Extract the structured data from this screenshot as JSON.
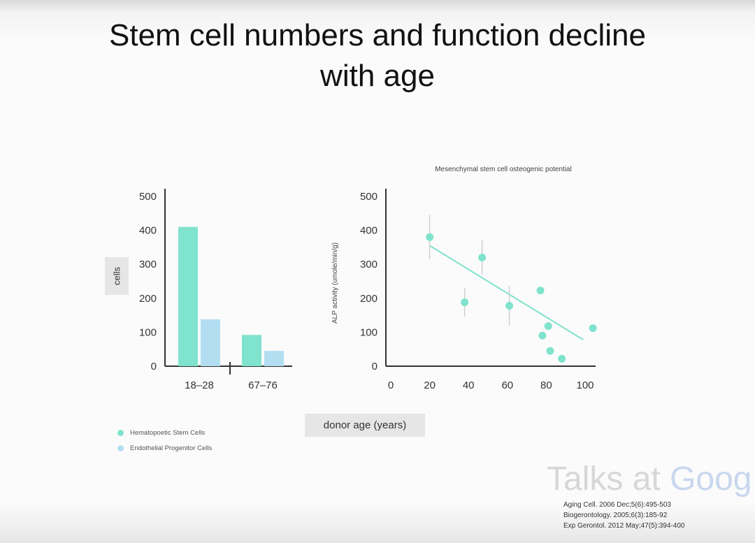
{
  "slide": {
    "title_line1": "Stem cell numbers and function decline",
    "title_line2": "with age"
  },
  "colors": {
    "hsc": "#7fe3cd",
    "epc": "#b3def1",
    "axis": "#333333"
  },
  "chart_data": [
    {
      "type": "bar",
      "categories": [
        "18–28",
        "67–76"
      ],
      "series": [
        {
          "name": "Hematopoetic Stem Cells",
          "values": [
            410,
            92
          ]
        },
        {
          "name": "Endothelial Progenitor Cells",
          "values": [
            138,
            45
          ]
        }
      ],
      "title": "",
      "xlabel": "donor age (years)",
      "ylabel": "cells",
      "ylim": [
        0,
        500
      ],
      "yticks": [
        0,
        100,
        200,
        300,
        400,
        500
      ],
      "legend_position": "bottom-left",
      "grid": false
    },
    {
      "type": "scatter",
      "title": "Mesenchymal stem cell osteogenic potential",
      "xlabel": "donor age (years)",
      "ylabel": "ALP activity (umole/min/g)",
      "xlim": [
        0,
        100
      ],
      "ylim": [
        0,
        500
      ],
      "xticks": [
        0,
        20,
        40,
        60,
        80,
        100
      ],
      "yticks": [
        0,
        100,
        200,
        300,
        400,
        500
      ],
      "points": [
        {
          "x": 20,
          "y": 380,
          "err": 65
        },
        {
          "x": 47,
          "y": 320,
          "err": 50
        },
        {
          "x": 38,
          "y": 188,
          "err": 42
        },
        {
          "x": 61,
          "y": 178,
          "err": 58
        },
        {
          "x": 77,
          "y": 223,
          "err": 0
        },
        {
          "x": 78,
          "y": 90,
          "err": 0
        },
        {
          "x": 81,
          "y": 118,
          "err": 0
        },
        {
          "x": 82,
          "y": 45,
          "err": 0
        },
        {
          "x": 88,
          "y": 22,
          "err": 0
        },
        {
          "x": 104,
          "y": 112,
          "err": 8
        }
      ],
      "trendline": {
        "x1": 20,
        "y1": 355,
        "x2": 99,
        "y2": 78
      },
      "grid": false
    }
  ],
  "legend": [
    {
      "label": "Hematopoetic Stem Cells"
    },
    {
      "label": "Endothelial Progenitor Cells"
    }
  ],
  "watermark": {
    "prefix": "Talks at ",
    "brand": "Goog"
  },
  "citations": [
    "Aging Cell. 2006 Dec;5(6):495-503",
    "Biogerontology. 2005;6(3):185-92",
    "Exp Gerontol. 2012 May;47(5):394-400"
  ]
}
